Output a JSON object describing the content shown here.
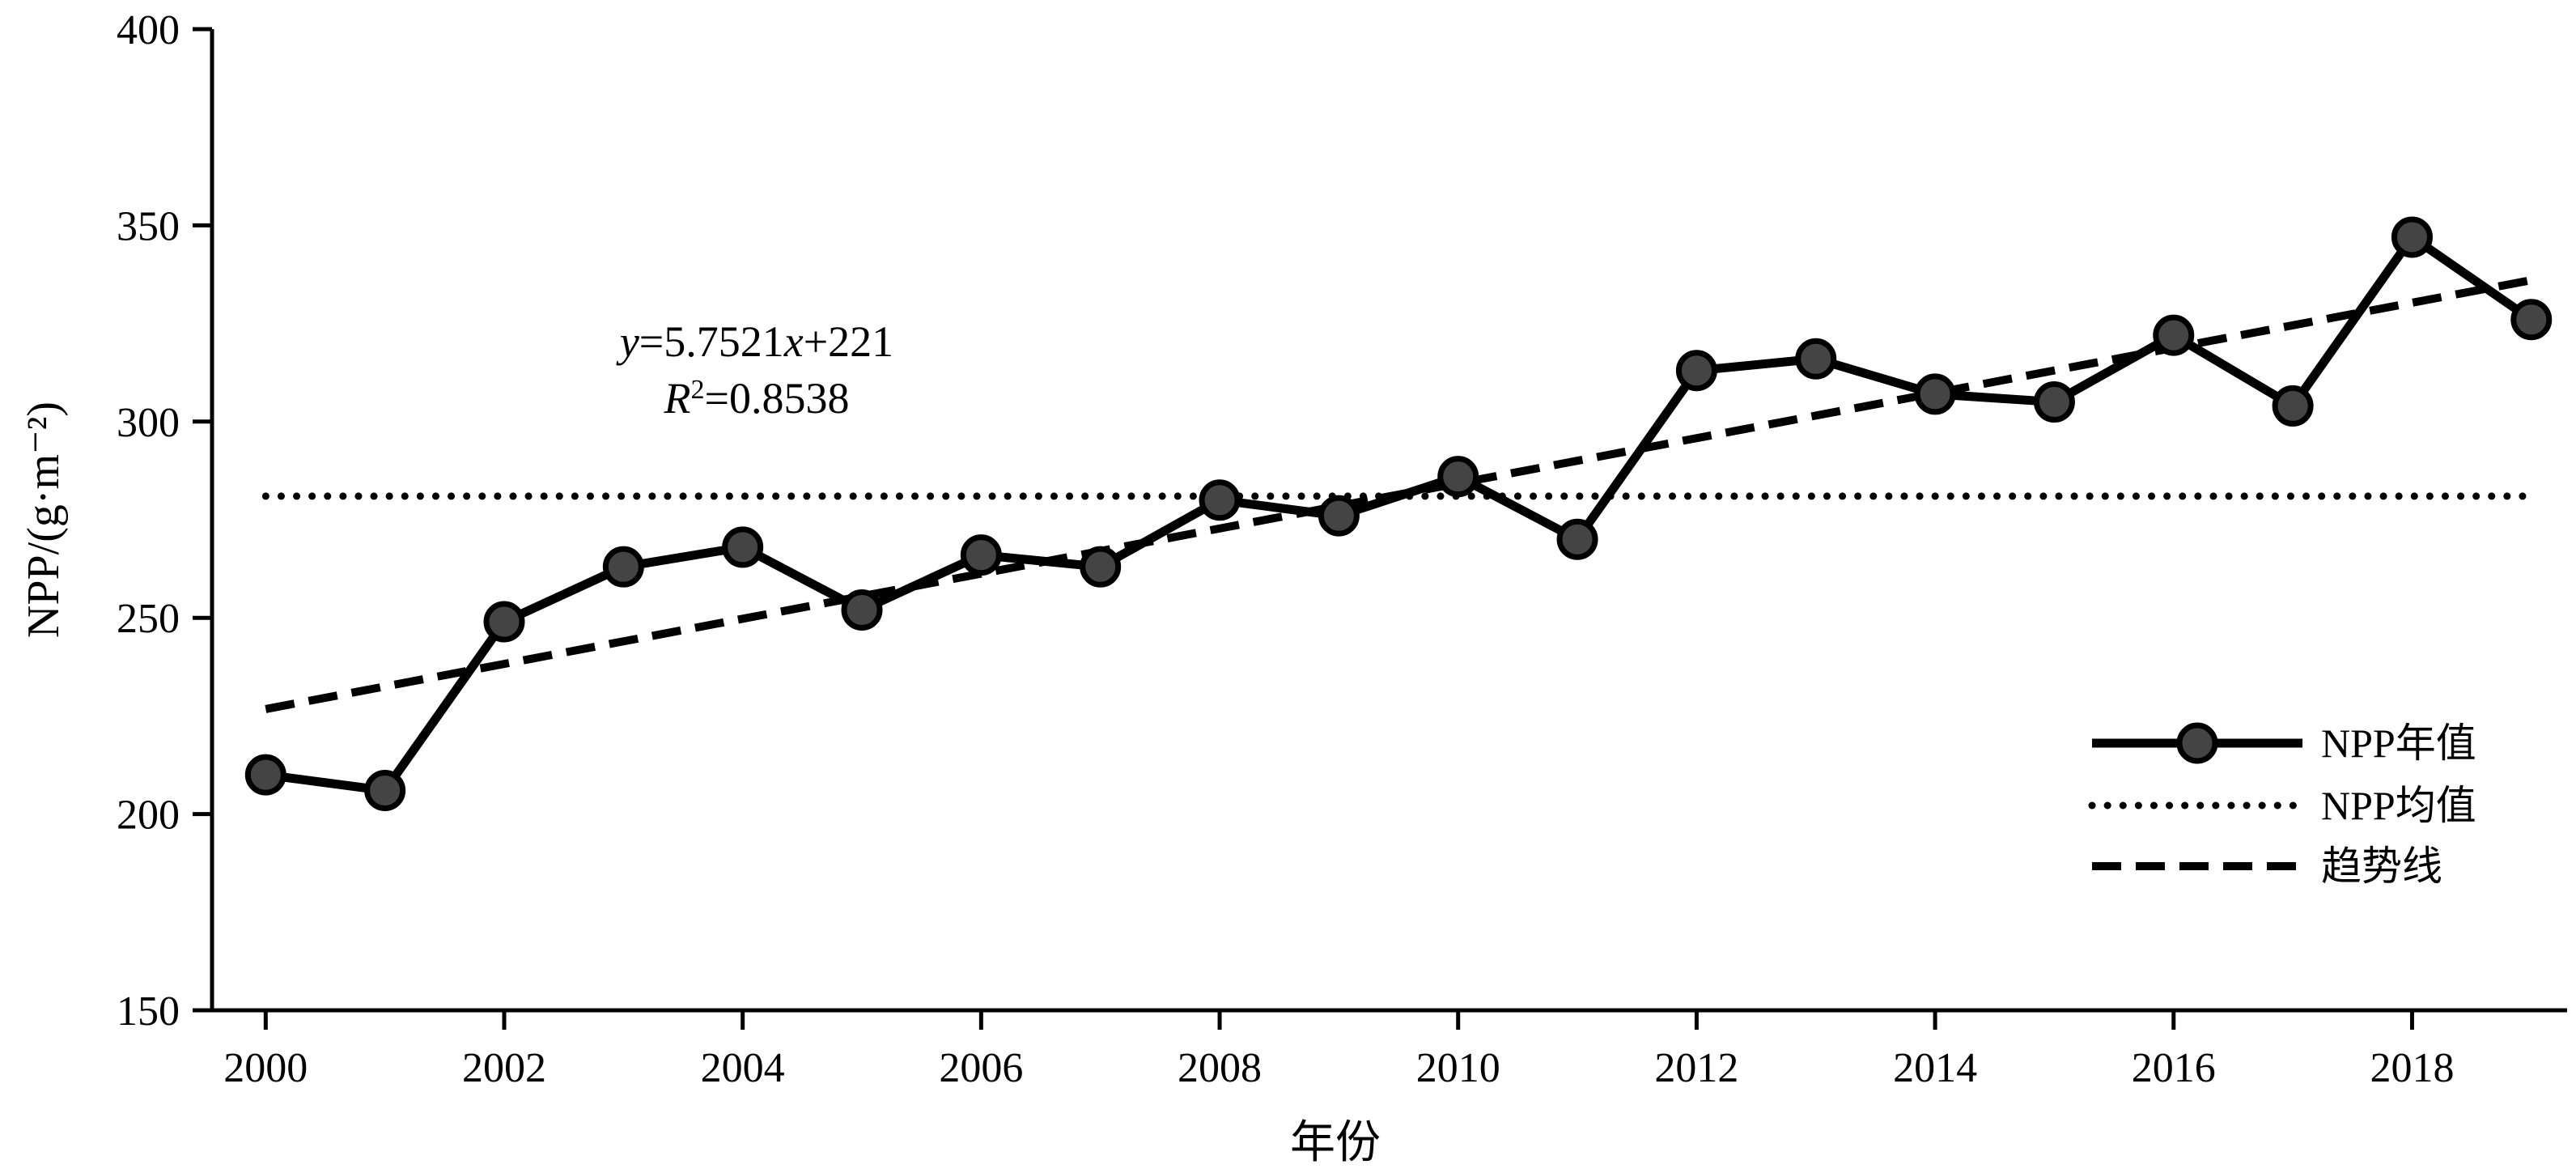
{
  "chart_data": {
    "type": "line",
    "x": [
      2000,
      2001,
      2002,
      2003,
      2004,
      2005,
      2006,
      2007,
      2008,
      2009,
      2010,
      2011,
      2012,
      2013,
      2014,
      2015,
      2016,
      2017,
      2018,
      2019
    ],
    "series": [
      {
        "name": "NPP年值",
        "style": "solid-with-markers",
        "values": [
          210,
          206,
          249,
          263,
          268,
          252,
          266,
          263,
          280,
          276,
          286,
          270,
          313,
          316,
          307,
          305,
          322,
          304,
          347,
          326
        ]
      },
      {
        "name": "NPP均值",
        "style": "dotted",
        "values": [
          281,
          281,
          281,
          281,
          281,
          281,
          281,
          281,
          281,
          281,
          281,
          281,
          281,
          281,
          281,
          281,
          281,
          281,
          281,
          281
        ]
      },
      {
        "name": "趋势线",
        "style": "dashed",
        "slope": 5.7521,
        "intercept": 221
      }
    ],
    "xlabel": "年份",
    "ylabel": "NPP/(g·m⁻²)",
    "xlim": [
      1999.55,
      2019.3
    ],
    "ylim": [
      150,
      400
    ],
    "xticks": [
      2000,
      2002,
      2004,
      2006,
      2008,
      2010,
      2012,
      2014,
      2016,
      2018
    ],
    "yticks": [
      150,
      200,
      250,
      300,
      350,
      400
    ],
    "grid": false,
    "legend_position": "bottom-right",
    "annotation": {
      "y_part": "y",
      "eq_part": "=5.7521",
      "x_part": "x",
      "tail_part": "+221",
      "r_part": "R",
      "sup_part": "2",
      "r2_value": "=0.8538"
    },
    "colors": {
      "line": "#000000",
      "marker_fill": "#444444",
      "marker_edge": "#000000"
    }
  }
}
